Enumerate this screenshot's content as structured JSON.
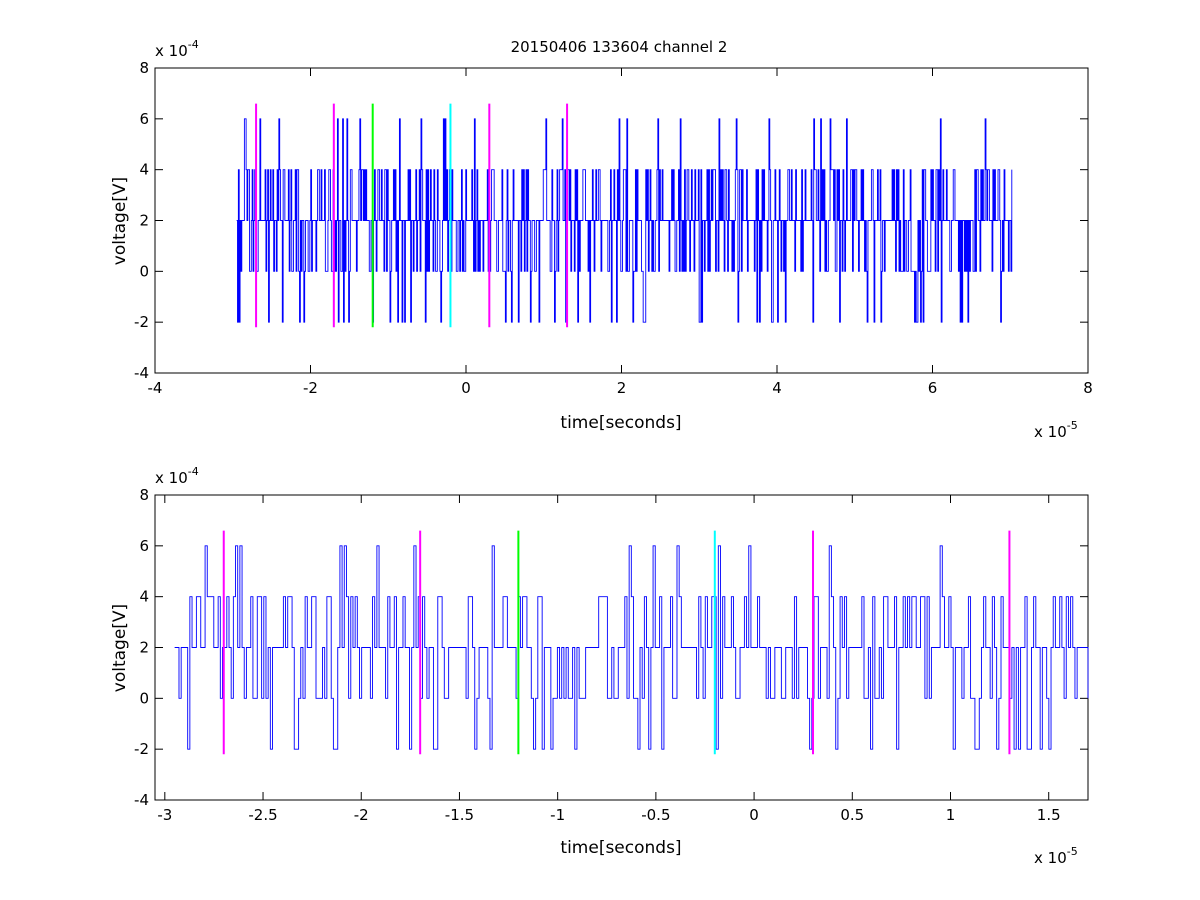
{
  "figure": {
    "title": "20150406 133604 channel 2"
  },
  "chart_data": [
    {
      "type": "line",
      "xlabel": "time[seconds]",
      "ylabel": "voltage[V]",
      "x_multiplier": "x 10",
      "x_exponent": "-5",
      "y_multiplier": "x 10",
      "y_exponent": "-4",
      "xlim": [
        -4,
        8
      ],
      "ylim": [
        -4,
        8
      ],
      "xticks": [
        -4,
        -2,
        0,
        2,
        4,
        6,
        8
      ],
      "xtick_labels": [
        "-4",
        "-2",
        "0",
        "2",
        "4",
        "6",
        "8"
      ],
      "yticks": [
        -4,
        -2,
        0,
        2,
        4,
        6,
        8
      ],
      "ytick_labels": [
        "-4",
        "-2",
        "0",
        "2",
        "4",
        "6",
        "8"
      ],
      "grid": false,
      "signal": {
        "color": "#0000ff",
        "x_start": -2.95,
        "x_end": 7.02,
        "levels": [
          -2,
          0,
          2,
          4,
          6
        ],
        "baseline": 2,
        "seed": 7
      },
      "markers": [
        {
          "x": -2.7,
          "ymin": -2.2,
          "ymax": 6.6,
          "color": "#ff00ff"
        },
        {
          "x": -1.7,
          "ymin": -2.2,
          "ymax": 6.6,
          "color": "#ff00ff"
        },
        {
          "x": -1.2,
          "ymin": -2.2,
          "ymax": 6.6,
          "color": "#00ff00"
        },
        {
          "x": -0.2,
          "ymin": -2.2,
          "ymax": 6.6,
          "color": "#00ffff"
        },
        {
          "x": 0.3,
          "ymin": -2.2,
          "ymax": 6.6,
          "color": "#ff00ff"
        },
        {
          "x": 1.3,
          "ymin": -2.2,
          "ymax": 6.6,
          "color": "#ff00ff"
        }
      ]
    },
    {
      "type": "line",
      "xlabel": "time[seconds]",
      "ylabel": "voltage[V]",
      "x_multiplier": "x 10",
      "x_exponent": "-5",
      "y_multiplier": "x 10",
      "y_exponent": "-4",
      "xlim": [
        -3.05,
        1.7
      ],
      "ylim": [
        -4,
        8
      ],
      "xticks": [
        -3,
        -2.5,
        -2,
        -1.5,
        -1,
        -0.5,
        0,
        0.5,
        1,
        1.5
      ],
      "xtick_labels": [
        "-3",
        "-2.5",
        "-2",
        "-1.5",
        "-1",
        "-0.5",
        "0",
        "0.5",
        "1",
        "1.5"
      ],
      "yticks": [
        -4,
        -2,
        0,
        2,
        4,
        6,
        8
      ],
      "ytick_labels": [
        "-4",
        "-2",
        "0",
        "2",
        "4",
        "6",
        "8"
      ],
      "grid": false,
      "signal": {
        "color": "#0000ff",
        "x_start": -2.95,
        "x_end": 1.7,
        "levels": [
          -2,
          0,
          2,
          4,
          6
        ],
        "baseline": 2,
        "seed": 13
      },
      "markers": [
        {
          "x": -2.7,
          "ymin": -2.2,
          "ymax": 6.6,
          "color": "#ff00ff"
        },
        {
          "x": -1.7,
          "ymin": -2.2,
          "ymax": 6.6,
          "color": "#ff00ff"
        },
        {
          "x": -1.2,
          "ymin": -2.2,
          "ymax": 6.6,
          "color": "#00ff00"
        },
        {
          "x": -0.2,
          "ymin": -2.2,
          "ymax": 6.6,
          "color": "#00ffff"
        },
        {
          "x": 0.3,
          "ymin": -2.2,
          "ymax": 6.6,
          "color": "#ff00ff"
        },
        {
          "x": 1.3,
          "ymin": -2.2,
          "ymax": 6.6,
          "color": "#ff00ff"
        }
      ]
    }
  ]
}
